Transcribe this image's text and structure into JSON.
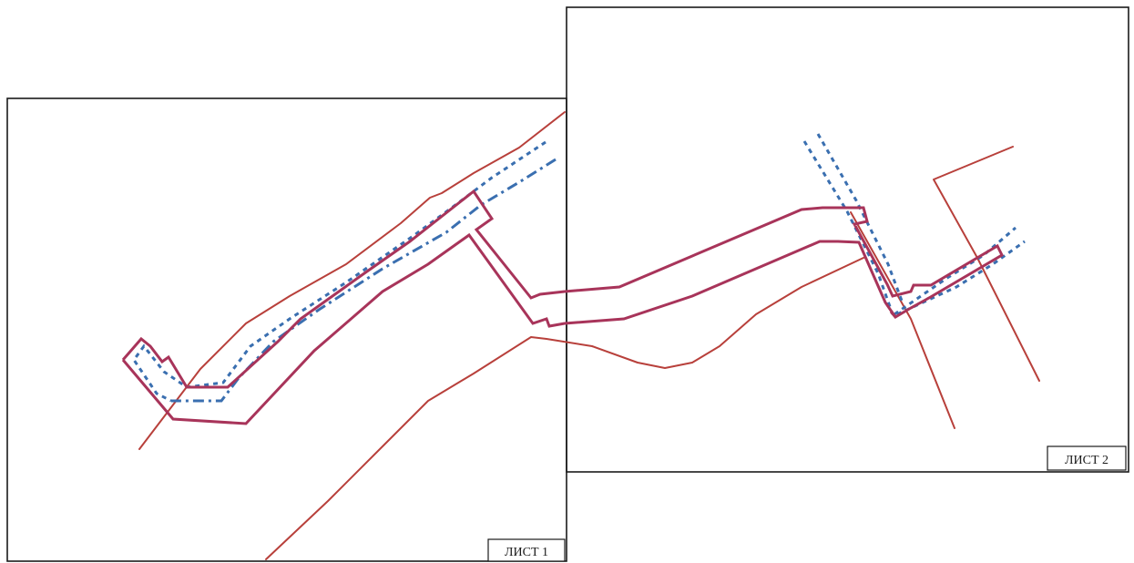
{
  "sheets": [
    {
      "label": "ЛИСТ 1"
    },
    {
      "label": "ЛИСТ 2"
    }
  ],
  "colors": {
    "boundary": "#b8403b",
    "plot": "#a8345a",
    "zone": "#3a6fb0",
    "frame": "#1a1a1a"
  }
}
